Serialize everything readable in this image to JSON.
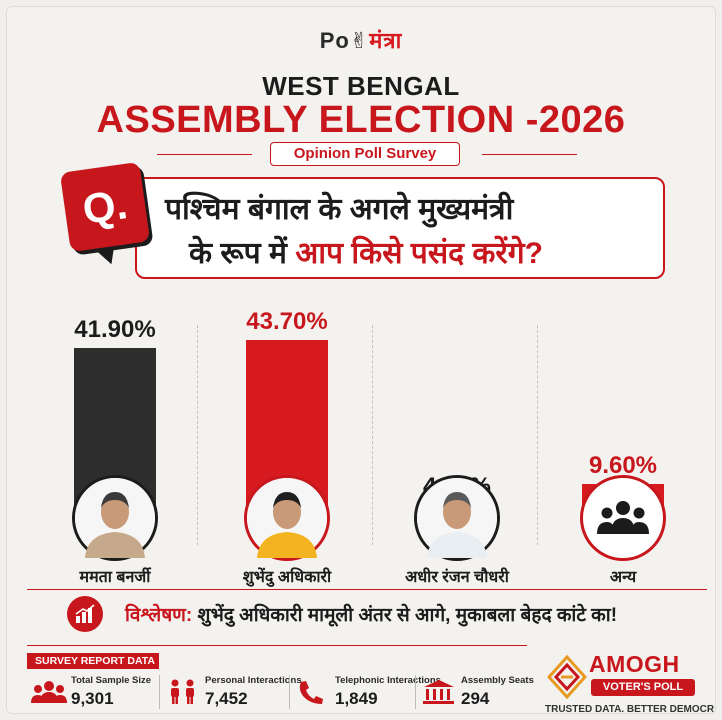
{
  "logo": {
    "part1": "Po",
    "part2": "मंत्रा"
  },
  "header": {
    "title_line1": "WEST BENGAL",
    "title_line2": "ASSEMBLY ELECTION -2026",
    "survey_label": "Opinion Poll Survey"
  },
  "question": {
    "badge": "Q.",
    "line1": "पश्चिम बंगाल के अगले मुख्यमंत्री",
    "line2_dark": "के रूप में",
    "line2_red": "आप किसे पसंद करेंगे?"
  },
  "chart_data": {
    "type": "bar",
    "categories": [
      "ममता बनर्जी",
      "शुभेंदु अधिकारी",
      "अधीर रंजन चौधरी",
      "अन्य"
    ],
    "values": [
      41.9,
      43.7,
      4.8,
      9.6
    ],
    "value_labels": [
      "41.90%",
      "43.70%",
      "4.80%",
      "9.60%"
    ],
    "colors": [
      "#2d2d2d",
      "#d71920",
      "#2d2d2d",
      "#d71920"
    ],
    "label_colors": [
      "#1c1c1c",
      "#c8161d",
      "#1c1c1c",
      "#c8161d"
    ],
    "avatar_icons": [
      "person-photo-icon",
      "person-photo-icon",
      "person-photo-icon",
      "group-icon"
    ],
    "ylim": [
      0,
      45
    ],
    "grid": false
  },
  "analysis": {
    "label": "विश्लेषण:",
    "text": "शुभेंदु अधिकारी मामूली अंतर से आगे, मुकाबला बेहद कांटे का!"
  },
  "report": {
    "tag": "SURVEY REPORT DATA",
    "stats": [
      {
        "label": "Total Sample Size",
        "value": "9,301",
        "icon": "people-group-icon"
      },
      {
        "label": "Personal Interactions",
        "value": "7,452",
        "icon": "two-persons-icon"
      },
      {
        "label": "Telephonic Interactions",
        "value": "1,849",
        "icon": "phone-icon"
      },
      {
        "label": "Assembly Seats",
        "value": "294",
        "icon": "building-icon"
      }
    ]
  },
  "brand": {
    "name": "AMOGH",
    "pill": "VOTER'S POLL",
    "tagline": "TRUSTED DATA. BETTER DEMOCRACY."
  },
  "colors": {
    "accent": "#c8161d",
    "dark": "#1c1c1c",
    "background": "#f1efec"
  }
}
